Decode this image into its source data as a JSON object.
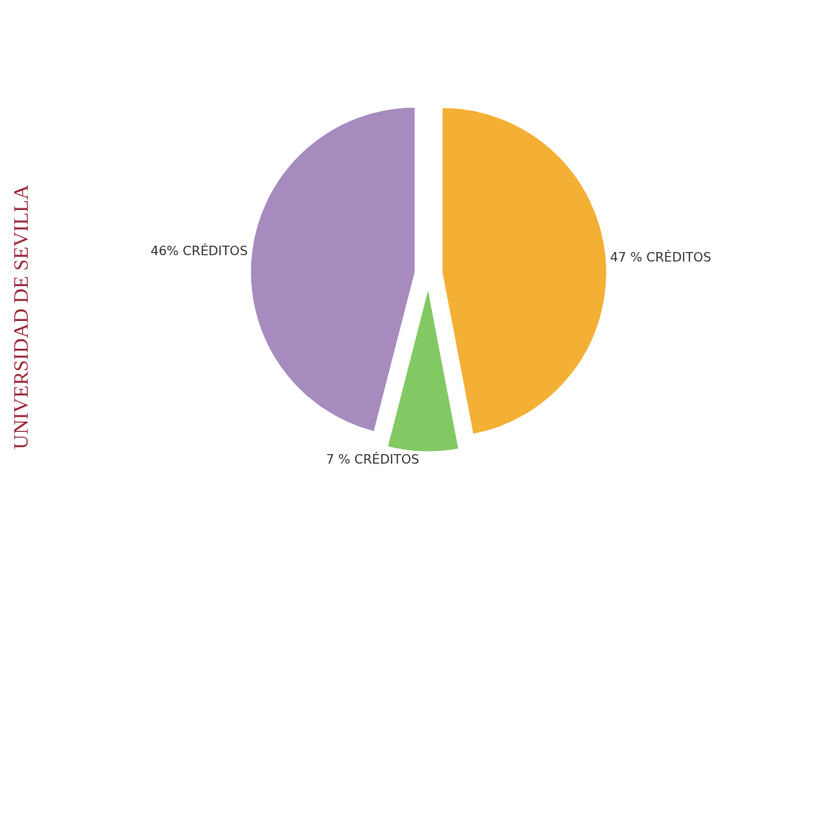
{
  "chart_data": {
    "type": "pie",
    "categories": [
      "47 % CRÉDITOS",
      "7 % CRÉDITOS",
      "46% CRÉDITOS"
    ],
    "values": [
      47,
      7,
      46
    ],
    "colors": [
      "#f3b035",
      "#82c964",
      "#a78bbf"
    ],
    "annotations": [
      "UNIVERSIDAD DE SEVILLA"
    ],
    "legend": false
  }
}
